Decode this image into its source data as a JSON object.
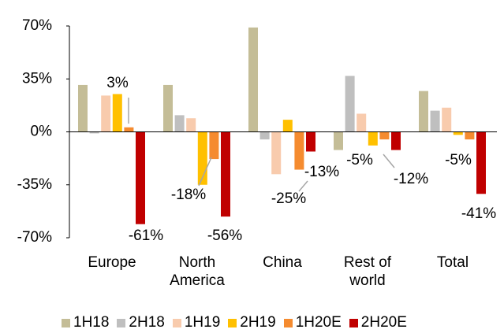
{
  "chart_data": {
    "type": "bar",
    "categories": [
      "Europe",
      "North America",
      "China",
      "Rest of world",
      "Total"
    ],
    "series": [
      {
        "name": "1H18",
        "color": "#c4bd97",
        "values": [
          31,
          31,
          69,
          -12,
          27
        ]
      },
      {
        "name": "2H18",
        "color": "#bfbfbf",
        "values": [
          -1,
          11,
          -5,
          37,
          14
        ]
      },
      {
        "name": "1H19",
        "color": "#f8cbad",
        "values": [
          24,
          9,
          -28,
          12,
          16
        ]
      },
      {
        "name": "2H19",
        "color": "#ffc000",
        "values": [
          25,
          -35,
          8,
          -9,
          -2
        ]
      },
      {
        "name": "1H20E",
        "color": "#f58b2f",
        "values": [
          3,
          -18,
          -25,
          -5,
          -5
        ],
        "value_labels": [
          "3%",
          "-18%",
          "-25%",
          "-5%",
          "-5%"
        ]
      },
      {
        "name": "2H20E",
        "color": "#c00000",
        "values": [
          -61,
          -56,
          -13,
          -12,
          -41
        ],
        "value_labels": [
          "-61%",
          "-56%",
          "-13%",
          "-12%",
          "-41%"
        ]
      }
    ],
    "ylim": [
      -70,
      70
    ],
    "yticks": [
      {
        "value": 70,
        "label": "70%"
      },
      {
        "value": 35,
        "label": "35%"
      },
      {
        "value": 0,
        "label": "0%"
      },
      {
        "value": -35,
        "label": "-35%"
      },
      {
        "value": -70,
        "label": "-70%"
      }
    ]
  }
}
